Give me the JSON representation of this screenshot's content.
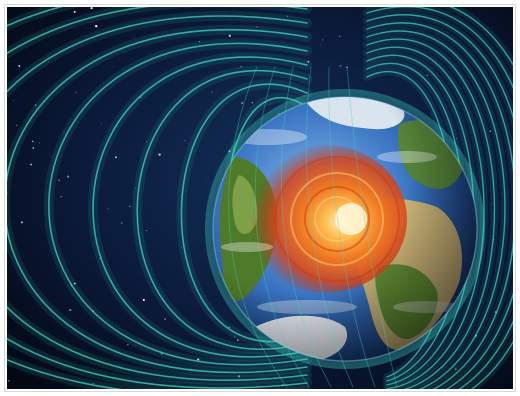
{
  "image": {
    "subject": "earth-magnetic-field",
    "colors": {
      "space_dark": "#030812",
      "space_mid": "#0b1a3a",
      "field_line": "#3fd6c6",
      "field_glow": "#1f8f8a",
      "ocean": "#2f67b8",
      "ocean_light": "#6fa6e0",
      "land_green": "#4e7a2a",
      "land_desert": "#c9b278",
      "ice": "#e9eef5",
      "core_outer": "#e0501a",
      "core_inner": "#ffd27a"
    }
  }
}
